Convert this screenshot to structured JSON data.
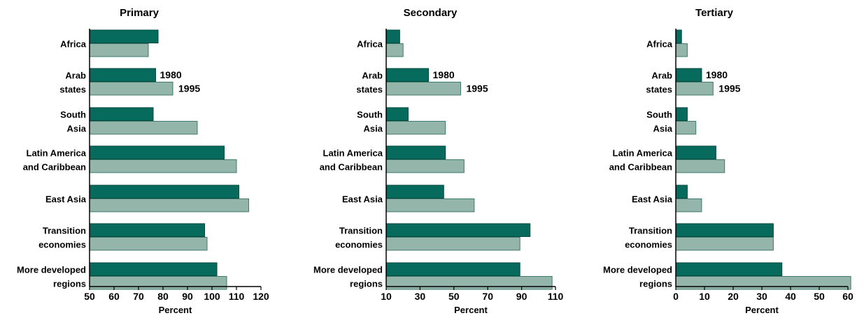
{
  "chart_data": [
    {
      "type": "bar",
      "orientation": "horizontal",
      "title": "Primary",
      "xlabel": "Percent",
      "xlim": [
        50,
        120
      ],
      "ticks": [
        50,
        60,
        70,
        80,
        90,
        100,
        110,
        120
      ],
      "categories": [
        [
          "Africa"
        ],
        [
          "Arab",
          "states"
        ],
        [
          "South",
          "Asia"
        ],
        [
          "Latin America",
          "and Caribbean"
        ],
        [
          "East Asia"
        ],
        [
          "Transition",
          "economies"
        ],
        [
          "More developed",
          "regions"
        ]
      ],
      "series": [
        {
          "name": "1980",
          "color": "#066a5c",
          "values": [
            78,
            77,
            76,
            105,
            111,
            97,
            102
          ]
        },
        {
          "name": "1995",
          "color": "#93b5aa",
          "values": [
            74,
            84,
            94,
            110,
            115,
            98,
            106
          ]
        }
      ],
      "annotations": [
        {
          "text": "1980"
        },
        {
          "text": "1995"
        }
      ],
      "grid": false,
      "legend": "inline labels on Arab states bars"
    },
    {
      "type": "bar",
      "orientation": "horizontal",
      "title": "Secondary",
      "xlabel": "Percent",
      "xlim": [
        10,
        110
      ],
      "ticks": [
        10,
        30,
        50,
        70,
        90,
        110
      ],
      "categories": [
        [
          "Africa"
        ],
        [
          "Arab",
          "states"
        ],
        [
          "South",
          "Asia"
        ],
        [
          "Latin America",
          "and Caribbean"
        ],
        [
          "East Asia"
        ],
        [
          "Transition",
          "economies"
        ],
        [
          "More developed",
          "regions"
        ]
      ],
      "series": [
        {
          "name": "1980",
          "color": "#066a5c",
          "values": [
            18,
            35,
            23,
            45,
            44,
            95,
            89
          ]
        },
        {
          "name": "1995",
          "color": "#93b5aa",
          "values": [
            20,
            54,
            45,
            56,
            62,
            89,
            108
          ]
        }
      ],
      "annotations": [
        {
          "text": "1980"
        },
        {
          "text": "1995"
        }
      ],
      "grid": false,
      "legend": "inline labels on Arab states bars"
    },
    {
      "type": "bar",
      "orientation": "horizontal",
      "title": "Tertiary",
      "xlabel": "Percent",
      "xlim": [
        0,
        60
      ],
      "ticks": [
        0,
        10,
        20,
        30,
        40,
        50,
        60
      ],
      "categories": [
        [
          "Africa"
        ],
        [
          "Arab",
          "states"
        ],
        [
          "South",
          "Asia"
        ],
        [
          "Latin America",
          "and Caribbean"
        ],
        [
          "East Asia"
        ],
        [
          "Transition",
          "economies"
        ],
        [
          "More developed",
          "regions"
        ]
      ],
      "series": [
        {
          "name": "1980",
          "color": "#066a5c",
          "values": [
            2,
            9,
            4,
            14,
            4,
            34,
            37
          ]
        },
        {
          "name": "1995",
          "color": "#93b5aa",
          "values": [
            4,
            13,
            7,
            17,
            9,
            34,
            61
          ]
        }
      ],
      "annotations": [
        {
          "text": "1980"
        },
        {
          "text": "1995"
        }
      ],
      "grid": false,
      "legend": "inline labels on Arab states bars"
    }
  ]
}
